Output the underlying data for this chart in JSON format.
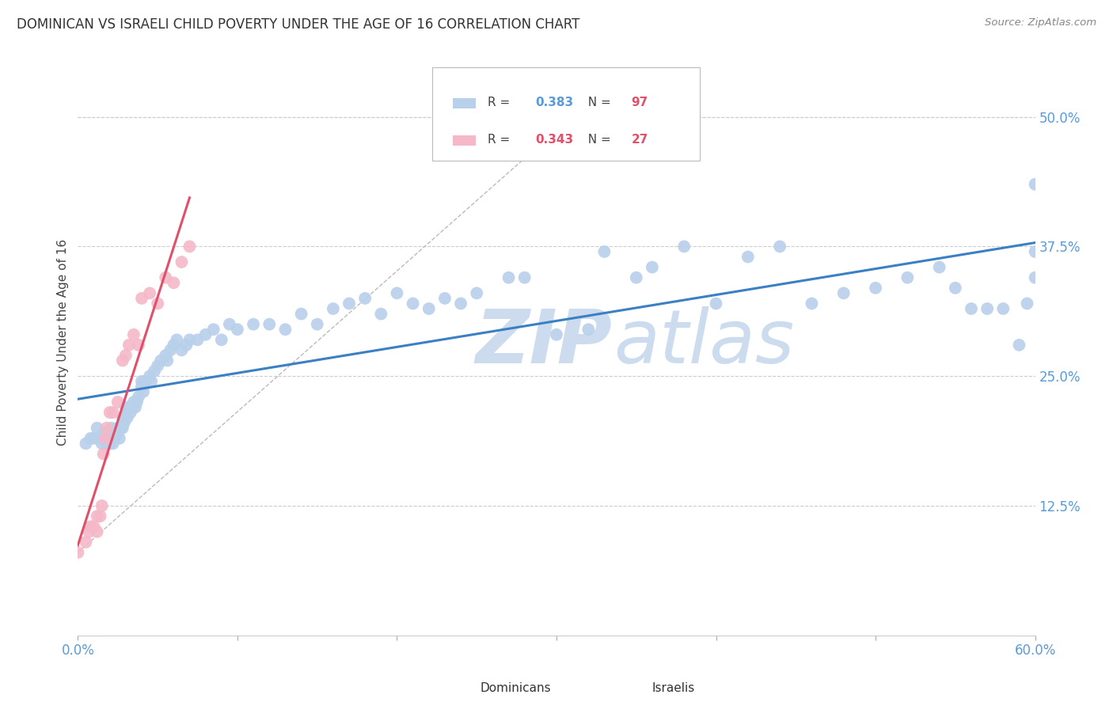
{
  "title": "DOMINICAN VS ISRAELI CHILD POVERTY UNDER THE AGE OF 16 CORRELATION CHART",
  "source": "Source: ZipAtlas.com",
  "ylabel": "Child Poverty Under the Age of 16",
  "xlim": [
    0.0,
    0.6
  ],
  "ylim": [
    0.0,
    0.565
  ],
  "xtick_positions": [
    0.0,
    0.1,
    0.2,
    0.3,
    0.4,
    0.5,
    0.6
  ],
  "xtick_labels": [
    "0.0%",
    "",
    "",
    "",
    "",
    "",
    "60.0%"
  ],
  "ytick_labels": [
    "12.5%",
    "25.0%",
    "37.5%",
    "50.0%"
  ],
  "ytick_positions": [
    0.125,
    0.25,
    0.375,
    0.5
  ],
  "dominican_R": "0.383",
  "dominican_N": "97",
  "israeli_R": "0.343",
  "israeli_N": "27",
  "dominican_color": "#b8d0ea",
  "dominican_line_color": "#3b7fc4",
  "israeli_color": "#f4b8c8",
  "israeli_line_color": "#e0506a",
  "watermark_color": "#ccdcee",
  "background": "#ffffff",
  "grid_color": "#cccccc",
  "dominican_x": [
    0.005,
    0.008,
    0.01,
    0.012,
    0.015,
    0.015,
    0.016,
    0.017,
    0.018,
    0.018,
    0.019,
    0.02,
    0.02,
    0.021,
    0.022,
    0.023,
    0.024,
    0.025,
    0.025,
    0.026,
    0.027,
    0.028,
    0.028,
    0.029,
    0.03,
    0.031,
    0.031,
    0.032,
    0.033,
    0.034,
    0.035,
    0.036,
    0.037,
    0.038,
    0.04,
    0.04,
    0.041,
    0.042,
    0.045,
    0.046,
    0.048,
    0.05,
    0.052,
    0.055,
    0.056,
    0.058,
    0.06,
    0.062,
    0.065,
    0.068,
    0.07,
    0.075,
    0.08,
    0.085,
    0.09,
    0.095,
    0.1,
    0.11,
    0.12,
    0.13,
    0.14,
    0.15,
    0.16,
    0.17,
    0.18,
    0.19,
    0.2,
    0.21,
    0.22,
    0.23,
    0.24,
    0.25,
    0.27,
    0.28,
    0.3,
    0.32,
    0.33,
    0.35,
    0.36,
    0.38,
    0.4,
    0.42,
    0.44,
    0.46,
    0.48,
    0.5,
    0.52,
    0.54,
    0.55,
    0.56,
    0.57,
    0.58,
    0.59,
    0.595,
    0.6,
    0.6,
    0.6
  ],
  "dominican_y": [
    0.185,
    0.19,
    0.19,
    0.2,
    0.185,
    0.19,
    0.195,
    0.19,
    0.185,
    0.19,
    0.195,
    0.185,
    0.19,
    0.2,
    0.185,
    0.19,
    0.195,
    0.2,
    0.195,
    0.19,
    0.2,
    0.21,
    0.2,
    0.205,
    0.22,
    0.21,
    0.215,
    0.22,
    0.215,
    0.22,
    0.225,
    0.22,
    0.225,
    0.23,
    0.24,
    0.245,
    0.235,
    0.245,
    0.25,
    0.245,
    0.255,
    0.26,
    0.265,
    0.27,
    0.265,
    0.275,
    0.28,
    0.285,
    0.275,
    0.28,
    0.285,
    0.285,
    0.29,
    0.295,
    0.285,
    0.3,
    0.295,
    0.3,
    0.3,
    0.295,
    0.31,
    0.3,
    0.315,
    0.32,
    0.325,
    0.31,
    0.33,
    0.32,
    0.315,
    0.325,
    0.32,
    0.33,
    0.345,
    0.345,
    0.29,
    0.295,
    0.37,
    0.345,
    0.355,
    0.375,
    0.32,
    0.365,
    0.375,
    0.32,
    0.33,
    0.335,
    0.345,
    0.355,
    0.335,
    0.315,
    0.315,
    0.315,
    0.28,
    0.32,
    0.37,
    0.435,
    0.345
  ],
  "israeli_x": [
    0.0,
    0.005,
    0.007,
    0.008,
    0.01,
    0.012,
    0.012,
    0.014,
    0.015,
    0.016,
    0.017,
    0.018,
    0.02,
    0.022,
    0.025,
    0.028,
    0.03,
    0.032,
    0.035,
    0.038,
    0.04,
    0.045,
    0.05,
    0.055,
    0.06,
    0.065,
    0.07
  ],
  "israeli_y": [
    0.08,
    0.09,
    0.1,
    0.105,
    0.105,
    0.1,
    0.115,
    0.115,
    0.125,
    0.175,
    0.19,
    0.2,
    0.215,
    0.215,
    0.225,
    0.265,
    0.27,
    0.28,
    0.29,
    0.28,
    0.325,
    0.33,
    0.32,
    0.345,
    0.34,
    0.36,
    0.375
  ]
}
